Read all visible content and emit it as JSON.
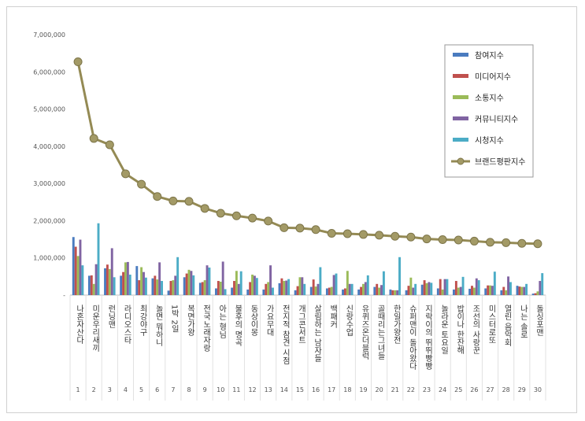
{
  "chart_data": {
    "type": "bar",
    "ylim": [
      0,
      7000000
    ],
    "yticks": [
      "-",
      "1,000,000",
      "2,000,000",
      "3,000,000",
      "4,000,000",
      "5,000,000",
      "6,000,000",
      "7,000,000"
    ],
    "grid": false,
    "legend_position": "top-right",
    "ranks": [
      "1",
      "2",
      "3",
      "4",
      "5",
      "6",
      "7",
      "8",
      "9",
      "10",
      "11",
      "12",
      "13",
      "14",
      "15",
      "16",
      "17",
      "18",
      "19",
      "20",
      "21",
      "22",
      "23",
      "24",
      "25",
      "26",
      "27",
      "28",
      "29",
      "30"
    ],
    "categories": [
      "나혼자산다",
      "미운우리새끼",
      "런닝맨",
      "라디오스타",
      "최강야구",
      "놀면 뭐하니",
      "1박 2일",
      "복면가왕",
      "전국노래자랑",
      "아는 형님",
      "불후의 명곡",
      "동상이몽",
      "가요무대",
      "전지적 참견 시점",
      "개그콘서트",
      "살림하는 남자들",
      "백패커",
      "신랑수업",
      "유퀴즈온더블럭",
      "골때리는그녀들",
      "한일가왕전",
      "슈퍼맨이 돌아왔다",
      "지락이의 뛰뛰빵빵",
      "놀라운 토요일",
      "밥이나 한잔해",
      "조선의 사랑꾼",
      "미스터로또",
      "열린 음악회",
      "나는 솔로",
      "돌싱포맨"
    ],
    "series": [
      {
        "name": "참여지수",
        "color": "#4a7bbf",
        "values": [
          1560000,
          520000,
          720000,
          520000,
          780000,
          450000,
          120000,
          480000,
          330000,
          180000,
          200000,
          150000,
          150000,
          320000,
          130000,
          220000,
          180000,
          150000,
          150000,
          220000,
          150000,
          130000,
          280000,
          180000,
          150000,
          170000,
          180000,
          130000,
          250000,
          40000
        ]
      },
      {
        "name": "미디어지수",
        "color": "#c0504d",
        "values": [
          1300000,
          530000,
          820000,
          620000,
          400000,
          520000,
          380000,
          580000,
          350000,
          380000,
          380000,
          350000,
          300000,
          450000,
          240000,
          420000,
          200000,
          180000,
          220000,
          300000,
          130000,
          250000,
          400000,
          430000,
          380000,
          250000,
          260000,
          220000,
          230000,
          50000
        ]
      },
      {
        "name": "소통지수",
        "color": "#9bbb59",
        "values": [
          1050000,
          300000,
          700000,
          880000,
          750000,
          420000,
          400000,
          680000,
          400000,
          360000,
          650000,
          550000,
          350000,
          380000,
          480000,
          230000,
          220000,
          650000,
          300000,
          200000,
          130000,
          470000,
          320000,
          150000,
          200000,
          200000,
          260000,
          130000,
          220000,
          100000
        ]
      },
      {
        "name": "커뮤니티지수",
        "color": "#8064a2",
        "values": [
          1490000,
          830000,
          1260000,
          890000,
          620000,
          880000,
          520000,
          650000,
          800000,
          900000,
          300000,
          520000,
          800000,
          390000,
          480000,
          300000,
          540000,
          300000,
          350000,
          270000,
          130000,
          200000,
          350000,
          430000,
          220000,
          450000,
          250000,
          500000,
          220000,
          380000
        ]
      },
      {
        "name": "시청지수",
        "color": "#4bacc6",
        "values": [
          800000,
          1930000,
          480000,
          550000,
          470000,
          380000,
          1020000,
          530000,
          740000,
          160000,
          640000,
          460000,
          200000,
          430000,
          300000,
          750000,
          580000,
          300000,
          530000,
          640000,
          1020000,
          300000,
          330000,
          430000,
          490000,
          400000,
          630000,
          350000,
          300000,
          590000
        ]
      }
    ],
    "line": {
      "name": "브랜드평판지수",
      "color": "#948a54",
      "values": [
        6270000,
        4210000,
        4040000,
        3260000,
        2980000,
        2650000,
        2530000,
        2520000,
        2330000,
        2200000,
        2130000,
        2070000,
        1990000,
        1810000,
        1800000,
        1760000,
        1660000,
        1650000,
        1630000,
        1610000,
        1580000,
        1560000,
        1510000,
        1490000,
        1480000,
        1450000,
        1420000,
        1410000,
        1390000,
        1380000
      ]
    }
  }
}
